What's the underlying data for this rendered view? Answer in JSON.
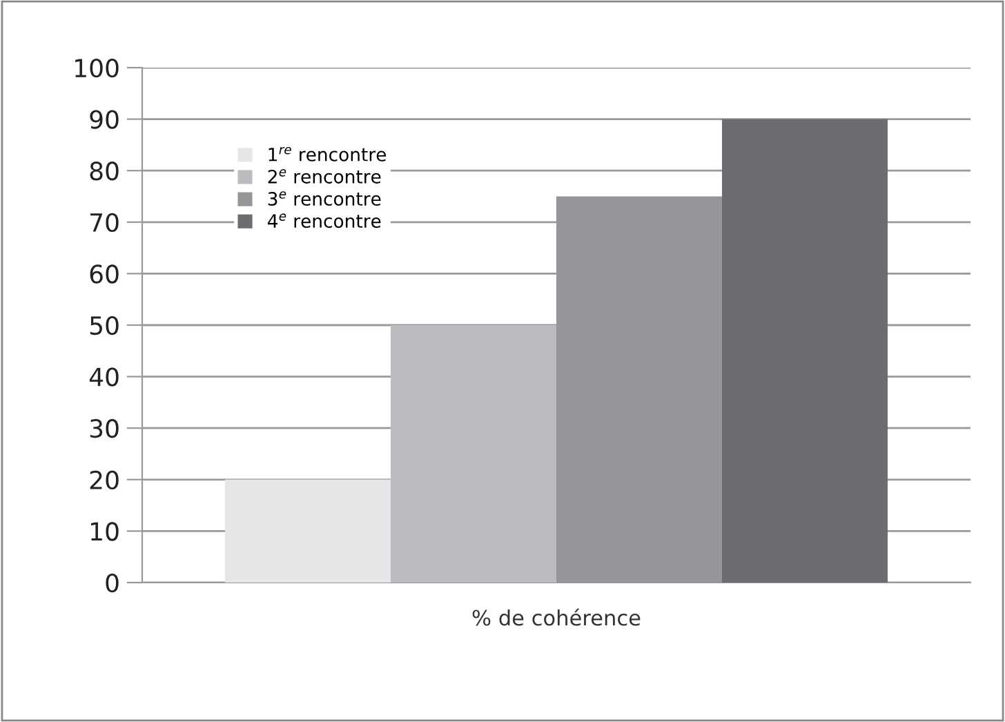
{
  "chart_data": {
    "type": "bar",
    "categories": [
      "% de cohérence"
    ],
    "series": [
      {
        "name": "1$^{re}$ rencontre",
        "color": "#e5e6e8",
        "values": [
          20
        ]
      },
      {
        "name": "2$^{e}$ rencontre",
        "color": "#bbbcbf",
        "values": [
          50
        ]
      },
      {
        "name": "3$^{e}$ rencontre",
        "color": "#95969a",
        "values": [
          75
        ]
      },
      {
        "name": "4$^{e}$ rencontre",
        "color": "#6c6d71",
        "values": [
          90
        ]
      }
    ],
    "ylim": [
      0,
      100
    ],
    "yticks": [
      0,
      10,
      20,
      30,
      40,
      50,
      60,
      70,
      80,
      90,
      100
    ],
    "grid": "y",
    "legend": "top left"
  }
}
